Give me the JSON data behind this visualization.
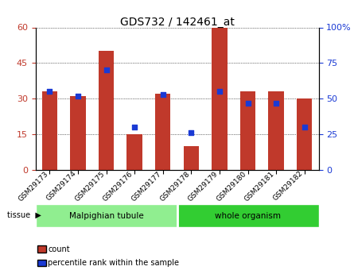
{
  "title": "GDS732 / 142461_at",
  "categories": [
    "GSM29173",
    "GSM29174",
    "GSM29175",
    "GSM29176",
    "GSM29177",
    "GSM29178",
    "GSM29179",
    "GSM29180",
    "GSM29181",
    "GSM29182"
  ],
  "count_values": [
    33,
    31,
    50,
    15,
    32,
    10,
    60,
    33,
    33,
    30
  ],
  "percentile_values": [
    55,
    52,
    70,
    30,
    53,
    26,
    55,
    47,
    47,
    30
  ],
  "left_ylim": [
    0,
    60
  ],
  "right_ylim": [
    0,
    100
  ],
  "left_yticks": [
    0,
    15,
    30,
    45,
    60
  ],
  "right_yticks": [
    0,
    25,
    50,
    75,
    100
  ],
  "bar_color": "#C0392B",
  "dot_color": "#1A3AD4",
  "tissue_groups": [
    {
      "label": "Malpighian tubule",
      "start": 0,
      "end": 5,
      "color": "#90EE90"
    },
    {
      "label": "whole organism",
      "start": 5,
      "end": 10,
      "color": "#32CD32"
    }
  ],
  "tissue_label": "tissue",
  "legend_items": [
    {
      "label": "count",
      "color": "#C0392B"
    },
    {
      "label": "percentile rank within the sample",
      "color": "#1A3AD4"
    }
  ],
  "grid_color": "#000000",
  "bar_width": 0.55
}
